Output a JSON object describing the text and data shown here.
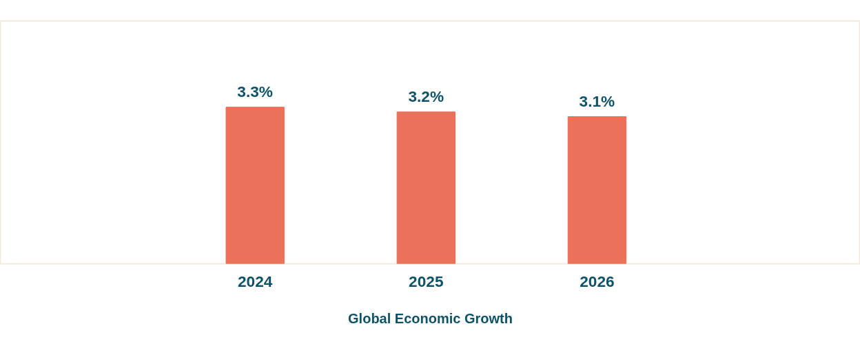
{
  "chart_data": {
    "type": "bar",
    "title": "Global Economic Growth",
    "categories": [
      "2024",
      "2025",
      "2026"
    ],
    "values": [
      3.3,
      3.2,
      3.1
    ],
    "value_labels": [
      "3.3%",
      "3.2%",
      "3.1%"
    ],
    "color": "#ec7159",
    "grid": false
  }
}
